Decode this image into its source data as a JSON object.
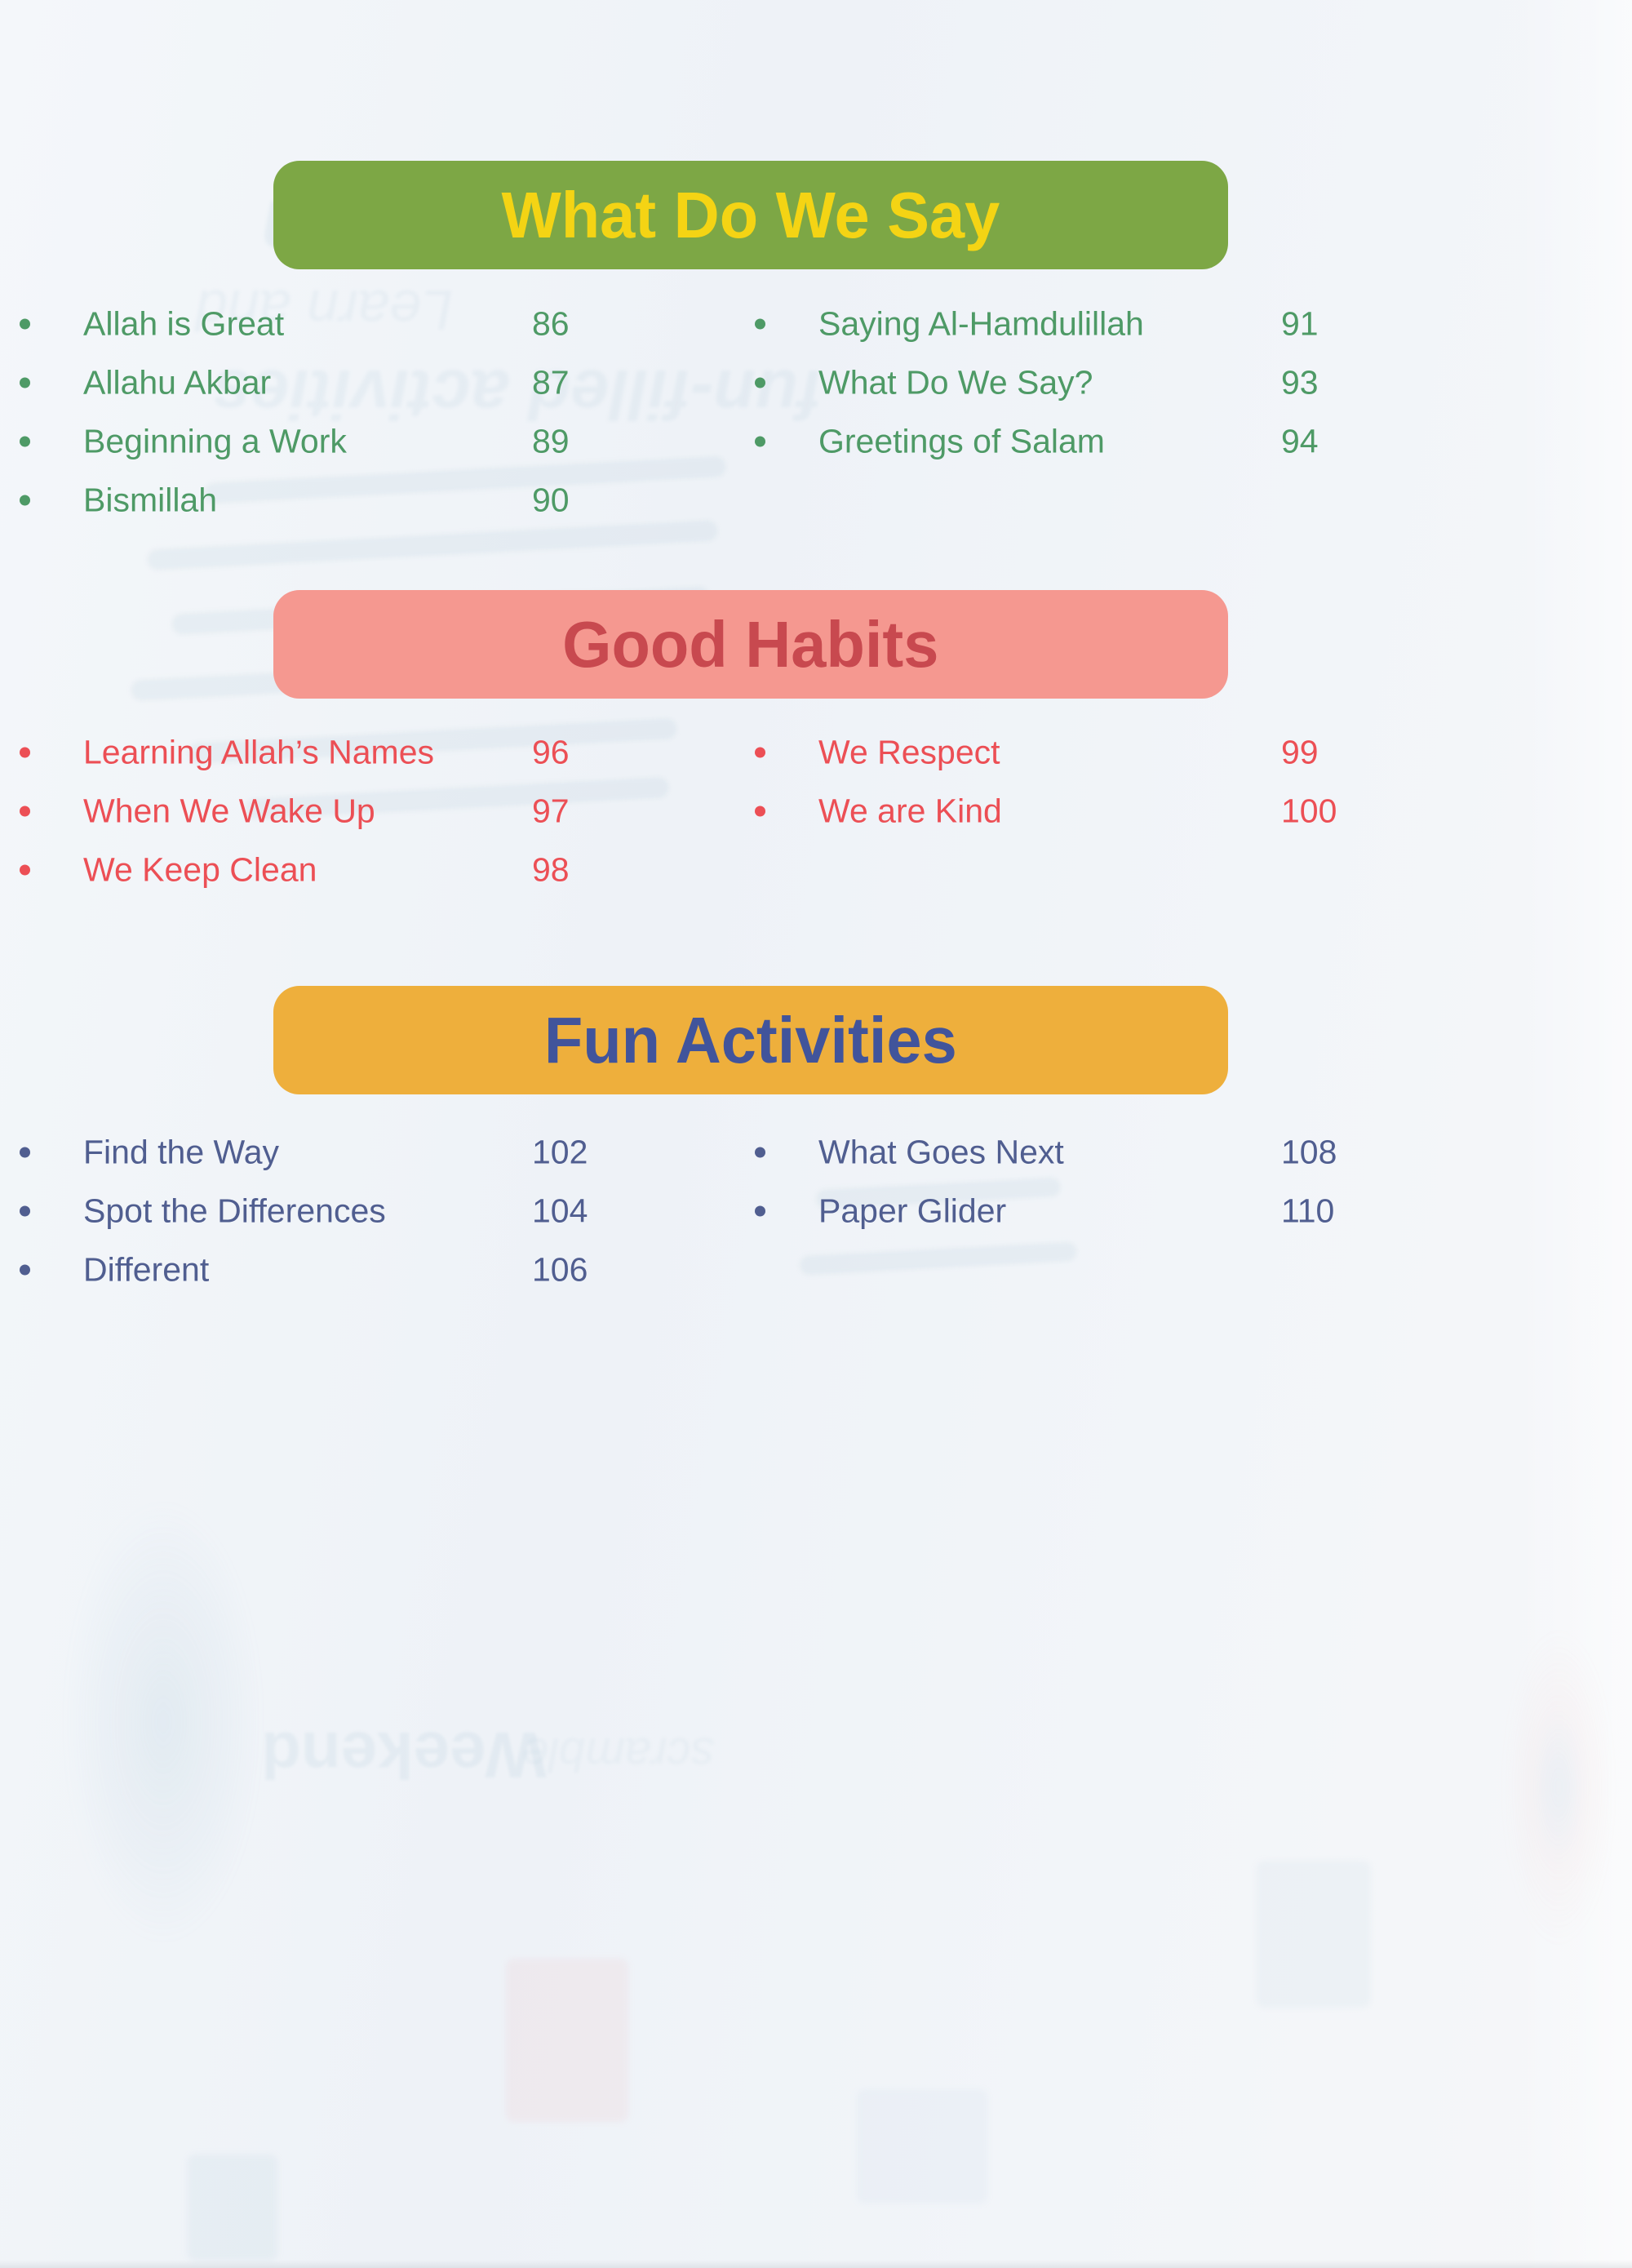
{
  "page": {
    "kind": "table-of-contents"
  },
  "sections": [
    {
      "title": "What Do We Say",
      "banner_bg": "#7DA745",
      "banner_text_color": "#F4D414",
      "item_color": "#4E9A66",
      "columns": [
        {
          "items": [
            {
              "label": "Allah is Great",
              "page": "86"
            },
            {
              "label": "Allahu Akbar",
              "page": "87"
            },
            {
              "label": "Beginning a Work",
              "page": "89"
            },
            {
              "label": "Bismillah",
              "page": "90"
            }
          ]
        },
        {
          "items": [
            {
              "label": "Saying Al-Hamdulillah",
              "page": "91"
            },
            {
              "label": "What Do We Say?",
              "page": "93"
            },
            {
              "label": "Greetings of Salam",
              "page": "94"
            }
          ]
        }
      ]
    },
    {
      "title": "Good Habits",
      "banner_bg": "#F59890",
      "banner_text_color": "#C8494F",
      "item_color": "#EC4F55",
      "columns": [
        {
          "items": [
            {
              "label": "Learning Allah’s Names",
              "page": "96"
            },
            {
              "label": "When We Wake Up",
              "page": "97"
            },
            {
              "label": "We Keep Clean",
              "page": "98"
            }
          ]
        },
        {
          "items": [
            {
              "label": "We Respect",
              "page": "99"
            },
            {
              "label": "We are Kind",
              "page": "100"
            }
          ]
        }
      ]
    },
    {
      "title": "Fun Activities",
      "banner_bg": "#EEAF3C",
      "banner_text_color": "#41549B",
      "item_color": "#505E90",
      "columns": [
        {
          "items": [
            {
              "label": "Find the Way",
              "page": "102"
            },
            {
              "label": "Spot the Differences",
              "page": "104"
            },
            {
              "label": "Different",
              "page": "106"
            }
          ]
        },
        {
          "items": [
            {
              "label": "What Goes Next",
              "page": "108"
            },
            {
              "label": "Paper Glider",
              "page": "110"
            }
          ]
        }
      ]
    }
  ],
  "ghost": {
    "fragments": [
      "learn through",
      "Learn and",
      "fun-filled activities",
      "Weekend",
      "scramble"
    ]
  }
}
